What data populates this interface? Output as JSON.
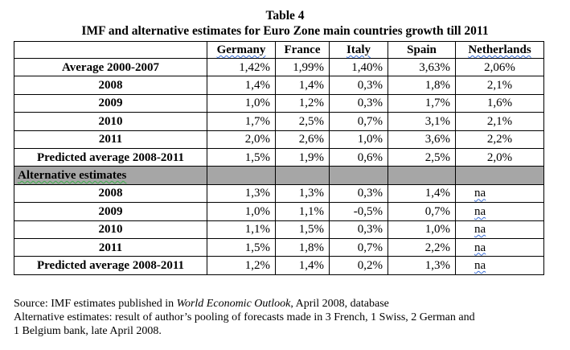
{
  "table_number": "Table 4",
  "table_title": "IMF and alternative estimates for Euro Zone main countries growth till 2011",
  "columns": [
    "",
    "Germany",
    "France",
    "Italy",
    "Spain",
    "Netherlands"
  ],
  "rows": [
    {
      "label": "Average 2000-2007",
      "values": [
        "1,42%",
        "1,99%",
        "1,40%",
        "3,63%",
        "2,06%"
      ]
    },
    {
      "label": "2008",
      "values": [
        "1,4%",
        "1,4%",
        "0,3%",
        "1,8%",
        "2,1%"
      ]
    },
    {
      "label": "2009",
      "values": [
        "1,0%",
        "1,2%",
        "0,3%",
        "1,7%",
        "1,6%"
      ]
    },
    {
      "label": "2010",
      "values": [
        "1,7%",
        "2,5%",
        "0,7%",
        "3,1%",
        "2,1%"
      ]
    },
    {
      "label": "2011",
      "values": [
        "2,0%",
        "2,6%",
        "1,0%",
        "3,6%",
        "2,2%"
      ]
    },
    {
      "label": "Predicted average 2008-2011",
      "values": [
        "1,5%",
        "1,9%",
        "0,6%",
        "2,5%",
        "2,0%"
      ]
    }
  ],
  "alt_section_label": "Alternative estimates",
  "alt_rows": [
    {
      "label": "2008",
      "values": [
        "1,3%",
        "1,3%",
        "0,3%",
        "1,4%",
        "na"
      ]
    },
    {
      "label": "2009",
      "values": [
        "1,0%",
        "1,1%",
        "-0,5%",
        "0,7%",
        "na"
      ]
    },
    {
      "label": "2010",
      "values": [
        "1,1%",
        "1,5%",
        "0,3%",
        "1,0%",
        "na"
      ]
    },
    {
      "label": "2011",
      "values": [
        "1,5%",
        "1,8%",
        "0,7%",
        "2,2%",
        "na"
      ]
    },
    {
      "label": "Predicted average 2008-2011",
      "values": [
        "1,2%",
        "1,4%",
        "0,2%",
        "1,3%",
        "na"
      ]
    }
  ],
  "source": {
    "prefix": "Source: IMF estimates published in ",
    "publication": "World Economic Outlook",
    "suffix": ", April 2008, database"
  },
  "note_line1": "Alternative estimates: result of author’s pooling of forecasts made in 3 French, 1 Swiss, 2 German and",
  "note_line2": "1 Belgium bank, late April 2008.",
  "colors": {
    "section_bg": "#a6a6a6",
    "spell_underline": "#3b6fd6"
  }
}
